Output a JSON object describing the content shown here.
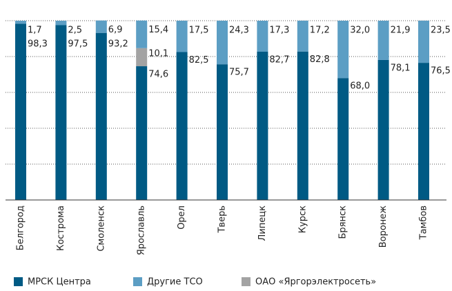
{
  "chart_data": {
    "type": "stacked_bar",
    "categories": [
      "Белгород",
      "Кострома",
      "Смоленск",
      "Ярославль",
      "Орел",
      "Тверь",
      "Липецк",
      "Курск",
      "Брянск",
      "Воронеж",
      "Тамбов"
    ],
    "series": [
      {
        "name": "МРСК Центра",
        "color": "#005a84",
        "values": [
          98.3,
          97.5,
          93.2,
          74.6,
          82.5,
          75.7,
          82.7,
          82.8,
          68.0,
          78.1,
          76.5
        ],
        "value_labels": [
          "98,3",
          "97,5",
          "93,2",
          "74,6",
          "82,5",
          "75,7",
          "82,7",
          "82,8",
          "68,0",
          "78,1",
          "76,5"
        ]
      },
      {
        "name": "Другие ТСО",
        "color": "#5c9ec4",
        "values": [
          1.7,
          2.5,
          6.9,
          15.4,
          17.5,
          24.3,
          17.3,
          17.2,
          32.0,
          21.9,
          23.5
        ],
        "value_labels": [
          "1,7",
          "2,5",
          "6,9",
          "15,4",
          "17,5",
          "24,3",
          "17,3",
          "17,2",
          "32,0",
          "21,9",
          "23,5"
        ]
      },
      {
        "name": "ОАО «Яргорэлектросеть»",
        "color": "#a3a3a3",
        "values": [
          null,
          null,
          null,
          10.1,
          null,
          null,
          null,
          null,
          null,
          null,
          null
        ],
        "value_labels": [
          null,
          null,
          null,
          "10,1",
          null,
          null,
          null,
          null,
          null,
          null,
          null
        ]
      }
    ],
    "ylim": [
      0,
      100
    ],
    "yticks": [
      0,
      20,
      40,
      60,
      80,
      100
    ],
    "grid": true,
    "legend": "bottom"
  }
}
